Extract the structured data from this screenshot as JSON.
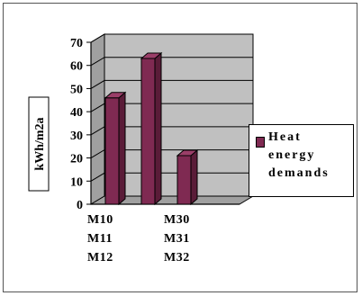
{
  "chart_data": {
    "type": "bar",
    "categories": [
      "M10 M11 M12",
      "",
      "M30 M31 M32"
    ],
    "x_tick_lines": [
      [
        "M10",
        "M11",
        "M12"
      ],
      [
        "M30",
        "M31",
        "M32"
      ]
    ],
    "series": [
      {
        "name": "Heat energy demands",
        "values": [
          46,
          63,
          21
        ]
      }
    ],
    "ylabel": "kWh/m2a",
    "ylim": [
      0,
      70
    ],
    "yticks": [
      0,
      10,
      20,
      30,
      40,
      50,
      60,
      70
    ],
    "grid": true,
    "legend": "right",
    "legend_lines": [
      "Heat",
      "energy",
      "demands"
    ]
  },
  "colors": {
    "bar_front": "#7f2a52",
    "bar_side": "#5a1c38",
    "bar_top": "#9a3e68",
    "wall": "#c0c0c0",
    "floor": "#a0a0a0"
  }
}
